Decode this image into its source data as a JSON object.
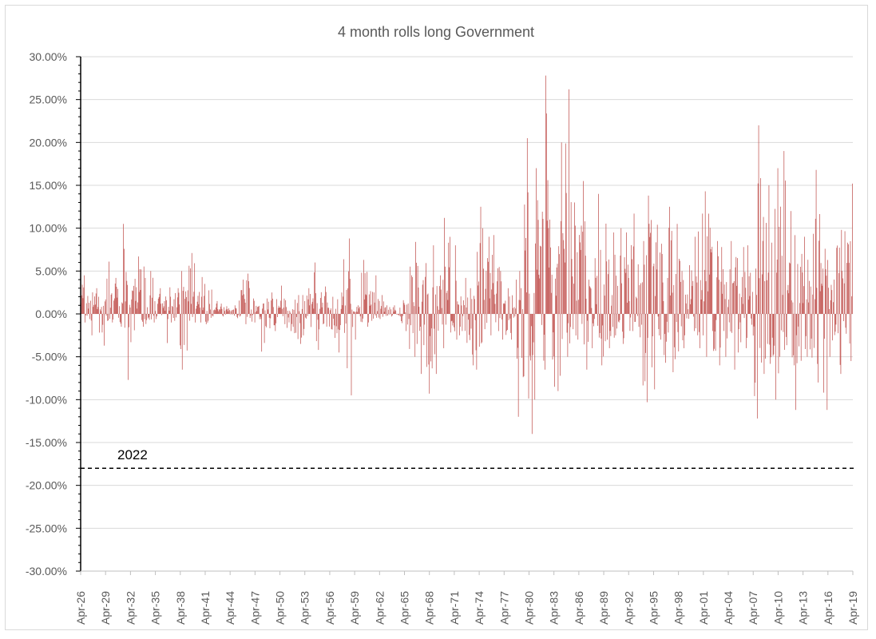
{
  "chart_data": {
    "type": "bar",
    "title": "4 month rolls long Government",
    "xlabel": "",
    "ylabel": "",
    "ylim": [
      -0.3,
      0.3
    ],
    "y_ticks": [
      "30.00%",
      "25.00%",
      "20.00%",
      "15.00%",
      "10.00%",
      "5.00%",
      "0.00%",
      "-5.00%",
      "-10.00%",
      "-15.00%",
      "-20.00%",
      "-25.00%",
      "-30.00%"
    ],
    "x_ticks": [
      "Apr-26",
      "Apr-29",
      "Apr-32",
      "Apr-35",
      "Apr-38",
      "Apr-41",
      "Apr-44",
      "Apr-47",
      "Apr-50",
      "Apr-53",
      "Apr-56",
      "Apr-59",
      "Apr-62",
      "Apr-65",
      "Apr-68",
      "Apr-71",
      "Apr-74",
      "Apr-77",
      "Apr-80",
      "Apr-83",
      "Apr-86",
      "Apr-89",
      "Apr-92",
      "Apr-95",
      "Apr-98",
      "Apr-01",
      "Apr-04",
      "Apr-07",
      "Apr-10",
      "Apr-13",
      "Apr-16",
      "Apr-19"
    ],
    "x_range": [
      "Apr-26",
      "Apr-19"
    ],
    "grid": true,
    "bar_color": "#c0504d",
    "reference_line": {
      "value": -0.18,
      "label": "2022",
      "style": "dashed",
      "color": "#000000"
    },
    "series": [
      {
        "period_start": "Apr-26",
        "period_step_months": 1,
        "envelope_note": "",
        "annual_envelope": [
          {
            "year": 1926,
            "max": 0.045,
            "min": -0.01
          },
          {
            "year": 1927,
            "max": 0.03,
            "min": -0.025
          },
          {
            "year": 1928,
            "max": 0.02,
            "min": -0.037
          },
          {
            "year": 1929,
            "max": 0.061,
            "min": -0.01
          },
          {
            "year": 1930,
            "max": 0.042,
            "min": -0.015
          },
          {
            "year": 1931,
            "max": 0.105,
            "min": -0.077
          },
          {
            "year": 1932,
            "max": 0.041,
            "min": -0.033
          },
          {
            "year": 1933,
            "max": 0.067,
            "min": -0.015
          },
          {
            "year": 1934,
            "max": 0.05,
            "min": -0.01
          },
          {
            "year": 1935,
            "max": 0.03,
            "min": -0.006
          },
          {
            "year": 1936,
            "max": 0.031,
            "min": -0.034
          },
          {
            "year": 1937,
            "max": 0.03,
            "min": -0.01
          },
          {
            "year": 1938,
            "max": 0.05,
            "min": -0.065
          },
          {
            "year": 1939,
            "max": 0.071,
            "min": -0.01
          },
          {
            "year": 1940,
            "max": 0.043,
            "min": -0.01
          },
          {
            "year": 1941,
            "max": 0.035,
            "min": -0.012
          },
          {
            "year": 1942,
            "max": 0.015,
            "min": -0.003
          },
          {
            "year": 1943,
            "max": 0.012,
            "min": -0.003
          },
          {
            "year": 1944,
            "max": 0.01,
            "min": -0.002
          },
          {
            "year": 1945,
            "max": 0.04,
            "min": -0.005
          },
          {
            "year": 1946,
            "max": 0.047,
            "min": -0.012
          },
          {
            "year": 1947,
            "max": 0.018,
            "min": -0.01
          },
          {
            "year": 1948,
            "max": 0.018,
            "min": -0.044
          },
          {
            "year": 1949,
            "max": 0.025,
            "min": -0.02
          },
          {
            "year": 1950,
            "max": 0.033,
            "min": -0.012
          },
          {
            "year": 1951,
            "max": 0.008,
            "min": -0.02
          },
          {
            "year": 1952,
            "max": 0.022,
            "min": -0.035
          },
          {
            "year": 1953,
            "max": 0.03,
            "min": -0.025
          },
          {
            "year": 1954,
            "max": 0.06,
            "min": -0.042
          },
          {
            "year": 1955,
            "max": 0.032,
            "min": -0.018
          },
          {
            "year": 1956,
            "max": 0.02,
            "min": -0.028
          },
          {
            "year": 1957,
            "max": 0.025,
            "min": -0.045
          },
          {
            "year": 1958,
            "max": 0.088,
            "min": -0.095
          },
          {
            "year": 1959,
            "max": 0.01,
            "min": -0.03
          },
          {
            "year": 1960,
            "max": 0.063,
            "min": -0.015
          },
          {
            "year": 1961,
            "max": 0.045,
            "min": -0.01
          },
          {
            "year": 1962,
            "max": 0.022,
            "min": -0.006
          },
          {
            "year": 1963,
            "max": 0.01,
            "min": -0.003
          },
          {
            "year": 1964,
            "max": 0.01,
            "min": -0.003
          },
          {
            "year": 1965,
            "max": 0.016,
            "min": -0.02
          },
          {
            "year": 1966,
            "max": 0.084,
            "min": -0.05
          },
          {
            "year": 1967,
            "max": 0.056,
            "min": -0.07
          },
          {
            "year": 1968,
            "max": 0.08,
            "min": -0.093
          },
          {
            "year": 1969,
            "max": 0.045,
            "min": -0.07
          },
          {
            "year": 1970,
            "max": 0.112,
            "min": -0.04
          },
          {
            "year": 1971,
            "max": 0.08,
            "min": -0.03
          },
          {
            "year": 1972,
            "max": 0.042,
            "min": -0.025
          },
          {
            "year": 1973,
            "max": 0.03,
            "min": -0.06
          },
          {
            "year": 1974,
            "max": 0.125,
            "min": -0.065
          },
          {
            "year": 1975,
            "max": 0.09,
            "min": -0.025
          },
          {
            "year": 1976,
            "max": 0.092,
            "min": -0.02
          },
          {
            "year": 1977,
            "max": 0.05,
            "min": -0.03
          },
          {
            "year": 1978,
            "max": 0.03,
            "min": -0.03
          },
          {
            "year": 1979,
            "max": 0.05,
            "min": -0.12
          },
          {
            "year": 1980,
            "max": 0.205,
            "min": -0.14
          },
          {
            "year": 1981,
            "max": 0.17,
            "min": -0.1
          },
          {
            "year": 1982,
            "max": 0.278,
            "min": -0.065
          },
          {
            "year": 1983,
            "max": 0.11,
            "min": -0.085
          },
          {
            "year": 1984,
            "max": 0.2,
            "min": -0.09
          },
          {
            "year": 1985,
            "max": 0.262,
            "min": -0.05
          },
          {
            "year": 1986,
            "max": 0.13,
            "min": -0.03
          },
          {
            "year": 1987,
            "max": 0.155,
            "min": -0.065
          },
          {
            "year": 1988,
            "max": 0.065,
            "min": -0.04
          },
          {
            "year": 1989,
            "max": 0.14,
            "min": -0.06
          },
          {
            "year": 1990,
            "max": 0.095,
            "min": -0.04
          },
          {
            "year": 1991,
            "max": 0.1,
            "min": -0.025
          },
          {
            "year": 1992,
            "max": 0.095,
            "min": -0.035
          },
          {
            "year": 1993,
            "max": 0.117,
            "min": -0.02
          },
          {
            "year": 1994,
            "max": 0.085,
            "min": -0.103
          },
          {
            "year": 1995,
            "max": 0.138,
            "min": -0.088
          },
          {
            "year": 1996,
            "max": 0.104,
            "min": -0.03
          },
          {
            "year": 1997,
            "max": 0.125,
            "min": -0.057
          },
          {
            "year": 1998,
            "max": 0.105,
            "min": -0.068
          },
          {
            "year": 1999,
            "max": 0.05,
            "min": -0.04
          },
          {
            "year": 2000,
            "max": 0.09,
            "min": -0.02
          },
          {
            "year": 2001,
            "max": 0.117,
            "min": -0.04
          },
          {
            "year": 2002,
            "max": 0.143,
            "min": -0.05
          },
          {
            "year": 2003,
            "max": 0.085,
            "min": -0.06
          },
          {
            "year": 2004,
            "max": 0.078,
            "min": -0.05
          },
          {
            "year": 2005,
            "max": 0.085,
            "min": -0.065
          },
          {
            "year": 2006,
            "max": 0.078,
            "min": -0.045
          },
          {
            "year": 2007,
            "max": 0.08,
            "min": -0.04
          },
          {
            "year": 2008,
            "max": 0.22,
            "min": -0.122
          },
          {
            "year": 2009,
            "max": 0.15,
            "min": -0.07
          },
          {
            "year": 2010,
            "max": 0.17,
            "min": -0.1
          },
          {
            "year": 2011,
            "max": 0.19,
            "min": -0.05
          },
          {
            "year": 2012,
            "max": 0.12,
            "min": -0.06
          },
          {
            "year": 2013,
            "max": 0.07,
            "min": -0.112
          },
          {
            "year": 2014,
            "max": 0.09,
            "min": -0.05
          },
          {
            "year": 2015,
            "max": 0.168,
            "min": -0.08
          },
          {
            "year": 2016,
            "max": 0.076,
            "min": -0.112
          },
          {
            "year": 2017,
            "max": 0.04,
            "min": -0.05
          },
          {
            "year": 2018,
            "max": 0.098,
            "min": -0.07
          },
          {
            "year": 2019,
            "max": 0.152,
            "min": -0.055
          }
        ]
      }
    ]
  }
}
